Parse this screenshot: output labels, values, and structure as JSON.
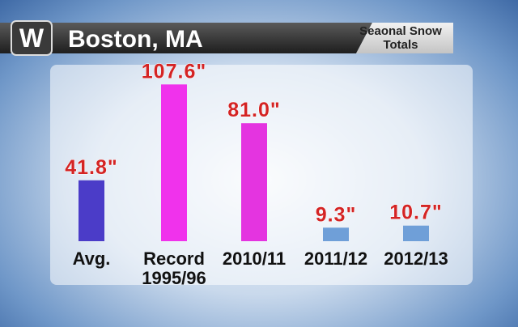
{
  "logo": "W",
  "chart_data": {
    "type": "bar",
    "title": "Boston, MA",
    "subtitle": "Seaonal Snow\nTotals",
    "categories": [
      "Avg.",
      "Record\n1995/96",
      "2010/11",
      "2011/12",
      "2012/13"
    ],
    "values": [
      41.8,
      107.6,
      81.0,
      9.3,
      10.7
    ],
    "value_labels": [
      "41.8\"",
      "107.6\"",
      "81.0\"",
      "9.3\"",
      "10.7\""
    ],
    "colors": [
      "#4b3cc8",
      "#f032ec",
      "#e434e0",
      "#6f9fd8",
      "#6f9fd8"
    ]
  }
}
